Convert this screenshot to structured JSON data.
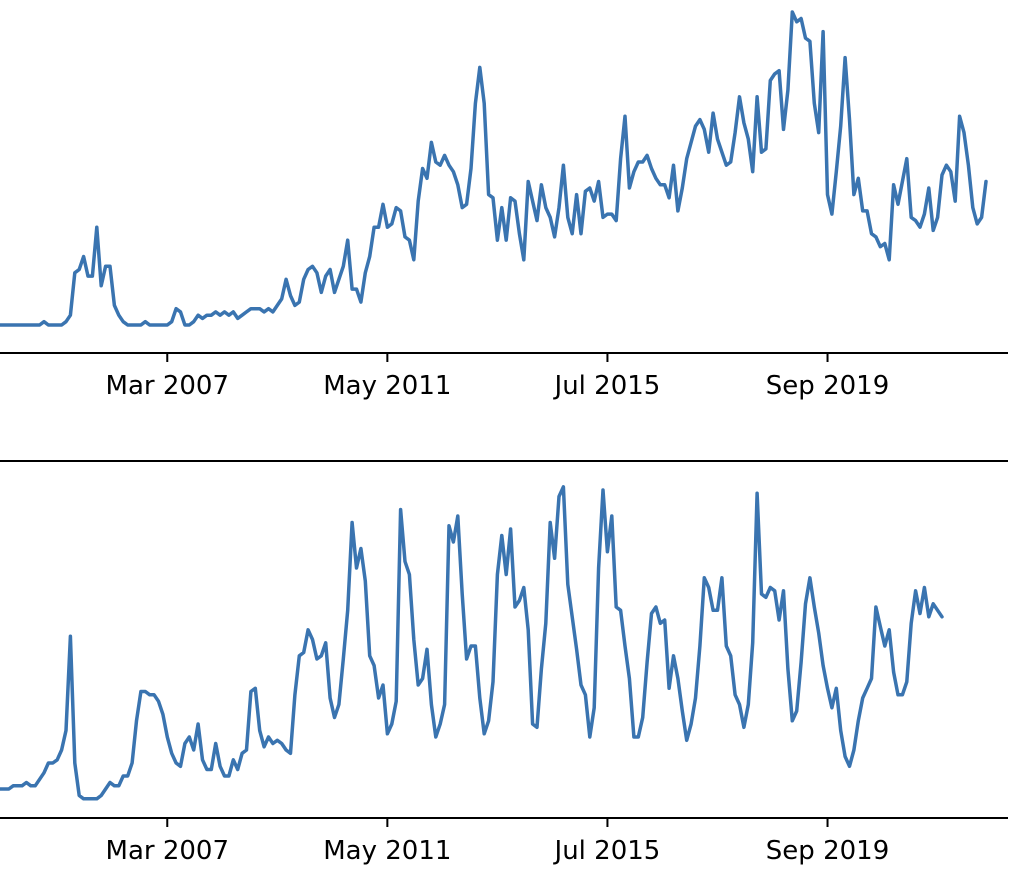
{
  "colors": {
    "line": "#3a74b0",
    "axis": "#000000",
    "background": "#ffffff"
  },
  "chart_data": [
    {
      "type": "line",
      "title": "",
      "xlabel": "",
      "ylabel": "",
      "x_start": "2004-01",
      "x_end": "2022-08",
      "x_interval": "monthly",
      "xlim": [
        "2004-01",
        "2023-02"
      ],
      "xticks": [
        {
          "date": "2007-03",
          "label": "Mar 2007"
        },
        {
          "date": "2011-05",
          "label": "May 2011"
        },
        {
          "date": "2015-07",
          "label": "Jul 2015"
        },
        {
          "date": "2019-09",
          "label": "Sep 2019"
        }
      ],
      "y_axis_visible": false,
      "ylim": [
        0,
        100
      ],
      "grid": false,
      "values": [
        4,
        4,
        4,
        4,
        4,
        4,
        4,
        4,
        4,
        4,
        5,
        4,
        4,
        4,
        4,
        5,
        7,
        20,
        21,
        25,
        19,
        19,
        34,
        16,
        22,
        22,
        10,
        7,
        5,
        4,
        4,
        4,
        4,
        5,
        4,
        4,
        4,
        4,
        4,
        5,
        9,
        8,
        4,
        4,
        5,
        7,
        6,
        7,
        7,
        8,
        7,
        8,
        7,
        8,
        6,
        7,
        8,
        9,
        9,
        9,
        8,
        9,
        8,
        10,
        12,
        18,
        13,
        10,
        11,
        18,
        21,
        22,
        20,
        14,
        19,
        21,
        14,
        18,
        22,
        30,
        15,
        15,
        11,
        20,
        25,
        34,
        34,
        41,
        34,
        35,
        40,
        39,
        31,
        30,
        24,
        42,
        52,
        49,
        60,
        54,
        53,
        56,
        53,
        51,
        47,
        40,
        41,
        52,
        72,
        83,
        72,
        44,
        43,
        30,
        40,
        30,
        43,
        42,
        32,
        24,
        48,
        42,
        36,
        47,
        40,
        37,
        31,
        40,
        53,
        37,
        32,
        44,
        32,
        45,
        46,
        42,
        48,
        37,
        38,
        38,
        36,
        55,
        68,
        46,
        51,
        54,
        54,
        56,
        52,
        49,
        47,
        47,
        43,
        53,
        39,
        46,
        55,
        60,
        65,
        67,
        64,
        57,
        69,
        61,
        57,
        53,
        54,
        63,
        74,
        66,
        61,
        51,
        74,
        57,
        58,
        79,
        81,
        82,
        64,
        76,
        100,
        97,
        98,
        92,
        91,
        72,
        63,
        94,
        44,
        38,
        51,
        65,
        86,
        67,
        44,
        49,
        39,
        39,
        32,
        31,
        28,
        29,
        24,
        47,
        41,
        48,
        55,
        37,
        36,
        34,
        38,
        46,
        33,
        37,
        50,
        53,
        51,
        42,
        68,
        63,
        53,
        40,
        35,
        37,
        48
      ]
    },
    {
      "type": "line",
      "title": "",
      "xlabel": "",
      "ylabel": "",
      "x_start": "2004-01",
      "x_end": "2022-08",
      "x_interval": "monthly",
      "xlim": [
        "2004-01",
        "2023-02"
      ],
      "xticks": [
        {
          "date": "2007-03",
          "label": "Mar 2007"
        },
        {
          "date": "2011-05",
          "label": "May 2011"
        },
        {
          "date": "2015-07",
          "label": "Jul 2015"
        },
        {
          "date": "2019-09",
          "label": "Sep 2019"
        }
      ],
      "y_axis_visible": false,
      "ylim": [
        0,
        100
      ],
      "grid": false,
      "values": [
        4,
        4,
        4,
        5,
        5,
        5,
        6,
        5,
        5,
        7,
        9,
        12,
        12,
        13,
        16,
        22,
        51,
        12,
        2,
        1,
        1,
        1,
        1,
        2,
        4,
        6,
        5,
        5,
        8,
        8,
        12,
        25,
        34,
        34,
        33,
        33,
        31,
        27,
        20,
        15,
        12,
        11,
        18,
        20,
        16,
        24,
        13,
        10,
        10,
        18,
        11,
        8,
        8,
        13,
        10,
        15,
        16,
        34,
        35,
        22,
        17,
        20,
        18,
        19,
        18,
        16,
        15,
        33,
        45,
        46,
        53,
        50,
        44,
        45,
        49,
        32,
        26,
        30,
        44,
        59,
        86,
        72,
        78,
        68,
        45,
        42,
        32,
        36,
        21,
        24,
        31,
        90,
        74,
        70,
        50,
        36,
        38,
        47,
        30,
        20,
        24,
        30,
        85,
        80,
        88,
        64,
        44,
        48,
        48,
        32,
        21,
        25,
        37,
        70,
        82,
        70,
        84,
        60,
        62,
        66,
        53,
        24,
        23,
        41,
        55,
        86,
        75,
        94,
        97,
        67,
        57,
        47,
        36,
        33,
        20,
        29,
        72,
        96,
        77,
        88,
        60,
        59,
        48,
        38,
        20,
        20,
        26,
        43,
        58,
        60,
        55,
        56,
        35,
        45,
        38,
        28,
        19,
        24,
        32,
        48,
        69,
        66,
        59,
        59,
        69,
        48,
        45,
        33,
        30,
        23,
        30,
        49,
        95,
        64,
        63,
        66,
        65,
        56,
        65,
        41,
        25,
        28,
        43,
        61,
        69,
        60,
        52,
        42,
        35,
        29,
        35,
        22,
        14,
        11,
        16,
        25,
        32,
        35,
        38,
        60,
        54,
        48,
        53,
        40,
        33,
        33,
        37,
        55,
        65,
        58,
        66,
        57,
        61,
        59,
        57
      ]
    }
  ]
}
